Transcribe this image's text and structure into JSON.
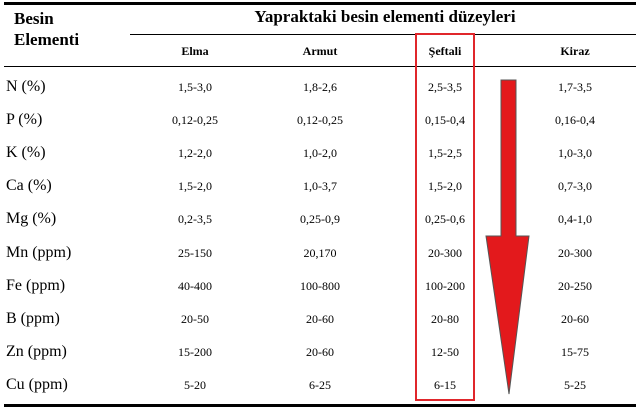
{
  "header": {
    "first_col_line1": "Besin",
    "first_col_line2": "Elementi",
    "group_title": "Yapraktaki besin elementi düzeyleri"
  },
  "columns": [
    "Elma",
    "Armut",
    "Şeftali",
    "Kiraz"
  ],
  "rows": [
    {
      "label": "N (%)",
      "values": [
        "1,5-3,0",
        "1,8-2,6",
        "2,5-3,5",
        "1,7-3,5"
      ]
    },
    {
      "label": "P (%)",
      "values": [
        "0,12-0,25",
        "0,12-0,25",
        "0,15-0,4",
        "0,16-0,4"
      ]
    },
    {
      "label": "K (%)",
      "values": [
        "1,2-2,0",
        "1,0-2,0",
        "1,5-2,5",
        "1,0-3,0"
      ]
    },
    {
      "label": "Ca (%)",
      "values": [
        "1,5-2,0",
        "1,0-3,7",
        "1,5-2,0",
        "0,7-3,0"
      ]
    },
    {
      "label": "Mg (%)",
      "values": [
        "0,2-3,5",
        "0,25-0,9",
        "0,25-0,6",
        "0,4-1,0"
      ]
    },
    {
      "label": "Mn (ppm)",
      "values": [
        "25-150",
        "20,170",
        "20-300",
        "20-300"
      ]
    },
    {
      "label": "Fe (ppm)",
      "values": [
        "40-400",
        "100-800",
        "100-200",
        "20-250"
      ]
    },
    {
      "label": "B (ppm)",
      "values": [
        "20-50",
        "20-60",
        "20-80",
        "20-60"
      ]
    },
    {
      "label": "Zn (ppm)",
      "values": [
        "15-200",
        "20-60",
        "12-50",
        "15-75"
      ]
    },
    {
      "label": "Cu (ppm)",
      "values": [
        "5-20",
        "6-25",
        "6-15",
        "5-25"
      ]
    }
  ],
  "highlight_color": "#e0262b",
  "arrow_color": "#e3191c",
  "icons": {
    "arrow": "down-arrow-icon",
    "highlight": "highlight-box"
  }
}
